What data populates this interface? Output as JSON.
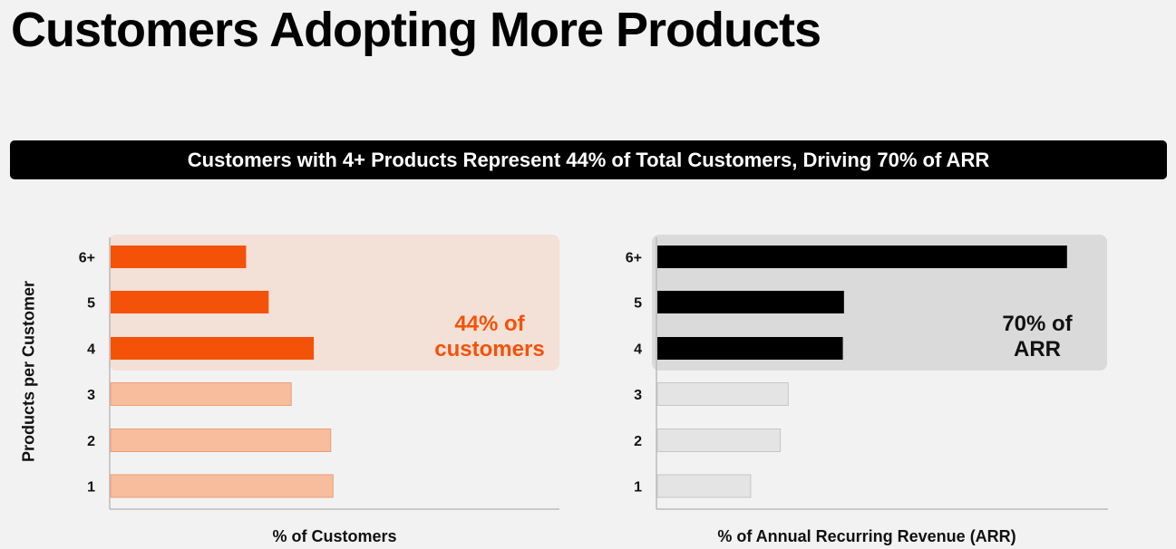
{
  "title": "Customers Adopting More Products",
  "banner": "Customers with 4+ Products Represent 44% of Total Customers, Driving 70% of ARR",
  "chart_data": [
    {
      "type": "bar",
      "orientation": "horizontal",
      "ylabel": "Products per Customer",
      "xlabel": "% of Customers",
      "categories": [
        "6+",
        "5",
        "4",
        "3",
        "2",
        "1"
      ],
      "values": [
        12,
        14,
        18,
        16,
        19.5,
        19.7
      ],
      "xlim": [
        0,
        40
      ],
      "highlight": {
        "categories": [
          "6+",
          "5",
          "4"
        ],
        "annotation": [
          "44% of",
          "customers"
        ]
      },
      "colors": {
        "highlight_bar": "#f45209",
        "base_bar": "#f8bd9c",
        "highlight_bg": "#f3e0d6",
        "annotation": "#f45209"
      }
    },
    {
      "type": "bar",
      "orientation": "horizontal",
      "xlabel": "% of Annual Recurring Revenue (ARR)",
      "categories": [
        "6+",
        "5",
        "4",
        "3",
        "2",
        "1"
      ],
      "values": [
        36,
        16.4,
        16.3,
        11.5,
        10.8,
        8.2
      ],
      "xlim": [
        0,
        40
      ],
      "highlight": {
        "categories": [
          "6+",
          "5",
          "4"
        ],
        "annotation": [
          "70% of",
          "ARR"
        ]
      },
      "colors": {
        "highlight_bar": "#000000",
        "base_bar": "#e4e4e4",
        "highlight_bg": "#dadada",
        "annotation": "#111111"
      }
    }
  ]
}
